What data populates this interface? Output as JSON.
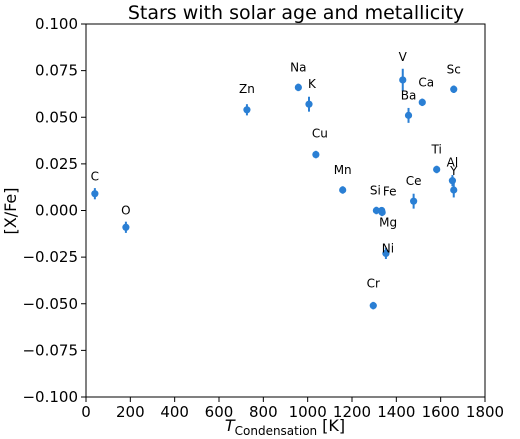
{
  "chart_data": {
    "type": "scatter",
    "title": "Stars with solar age and metallicity",
    "xlabel_main": "T",
    "xlabel_sub": "Condensation",
    "xlabel_unit": "[K]",
    "ylabel": "[X/Fe]",
    "xlim": [
      0,
      1800
    ],
    "ylim": [
      -0.1,
      0.1
    ],
    "xticks": [
      0,
      200,
      400,
      600,
      800,
      1000,
      1200,
      1400,
      1600,
      1800
    ],
    "yticks": [
      -0.1,
      -0.075,
      -0.05,
      -0.025,
      0.0,
      0.025,
      0.05,
      0.075,
      0.1
    ],
    "ytick_labels": [
      "−0.100",
      "−0.075",
      "−0.050",
      "−0.025",
      "0.000",
      "0.025",
      "0.050",
      "0.075",
      "0.100"
    ],
    "grid": false,
    "marker_color": "#2a7fd4",
    "points": [
      {
        "label": "C",
        "x": 40,
        "y": 0.009,
        "err": 0.003
      },
      {
        "label": "O",
        "x": 180,
        "y": -0.009,
        "err": 0.003
      },
      {
        "label": "Zn",
        "x": 726,
        "y": 0.054,
        "err": 0.003
      },
      {
        "label": "Na",
        "x": 958,
        "y": 0.066,
        "err": 0.002
      },
      {
        "label": "K",
        "x": 1006,
        "y": 0.057,
        "err": 0.004
      },
      {
        "label": "Cu",
        "x": 1037,
        "y": 0.03,
        "err": 0.002
      },
      {
        "label": "Mn",
        "x": 1158,
        "y": 0.011,
        "err": 0.002
      },
      {
        "label": "Cr",
        "x": 1296,
        "y": -0.051,
        "err": 0.002
      },
      {
        "label": "Si",
        "x": 1310,
        "y": 0.0,
        "err": 0.002
      },
      {
        "label": "Fe",
        "x": 1334,
        "y": 0.0,
        "err": 0.001
      },
      {
        "label": "Mg",
        "x": 1336,
        "y": -0.001,
        "err": 0.002
      },
      {
        "label": "Ni",
        "x": 1353,
        "y": -0.023,
        "err": 0.003
      },
      {
        "label": "V",
        "x": 1429,
        "y": 0.07,
        "err": 0.006
      },
      {
        "label": "Ba",
        "x": 1455,
        "y": 0.051,
        "err": 0.004
      },
      {
        "label": "Ce",
        "x": 1478,
        "y": 0.005,
        "err": 0.004
      },
      {
        "label": "Ca",
        "x": 1517,
        "y": 0.058,
        "err": 0.002
      },
      {
        "label": "Ti",
        "x": 1582,
        "y": 0.022,
        "err": 0.002
      },
      {
        "label": "Al",
        "x": 1653,
        "y": 0.016,
        "err": 0.003
      },
      {
        "label": "Y",
        "x": 1659,
        "y": 0.011,
        "err": 0.004
      },
      {
        "label": "Sc",
        "x": 1659,
        "y": 0.065,
        "err": 0.002
      }
    ]
  }
}
